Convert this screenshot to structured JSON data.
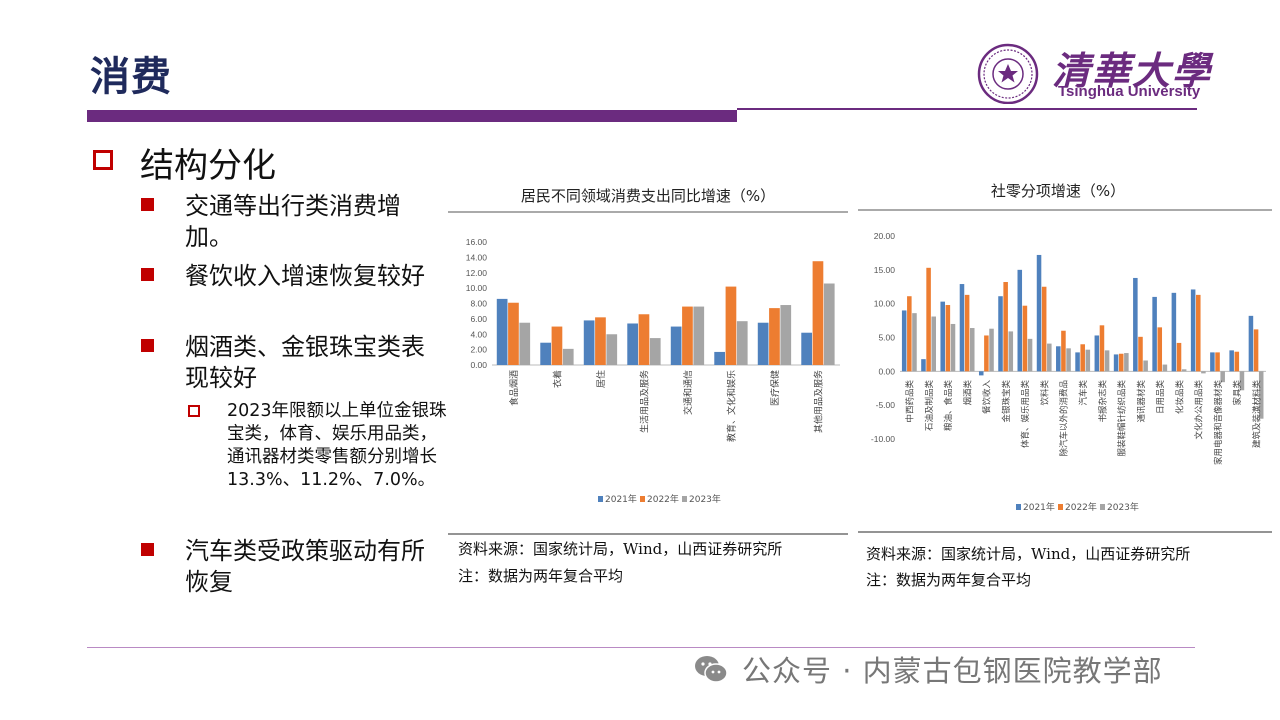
{
  "title": "消费",
  "logo": {
    "cn": "清華大學",
    "en": "Tsinghua University",
    "seal_text": "清华大学 TSINGHUA UNIVERSITY 1911"
  },
  "section": {
    "heading": "结构分化",
    "bullets": [
      {
        "text": "交通等出行类消费增加。"
      },
      {
        "text": "餐饮收入增速恢复较好"
      },
      {
        "text": "烟酒类、金银珠宝类表现较好"
      },
      {
        "text": "汽车类受政策驱动有所恢复"
      }
    ],
    "sub_bullet": "2023年限额以上单位金银珠宝类，体育、娱乐用品类，通讯器材类零售额分别增长 13.3%、11.2%、7.0%。"
  },
  "colors": {
    "y2021": "#4f81bd",
    "y2022": "#ed7d31",
    "y2023": "#a5a5a5",
    "accent": "#6b2b7f",
    "bullet": "#c00000"
  },
  "chart_data": [
    {
      "type": "bar",
      "title": "居民不同领域消费支出同比增速（%）",
      "categories": [
        "食品烟酒",
        "衣着",
        "居住",
        "生活用品及服务",
        "交通和通信",
        "教育、文化和娱乐",
        "医疗保健",
        "其他用品及服务"
      ],
      "series": [
        {
          "name": "2021年",
          "values": [
            8.6,
            2.9,
            5.8,
            5.4,
            5.0,
            1.7,
            5.5,
            4.2
          ]
        },
        {
          "name": "2022年",
          "values": [
            8.1,
            5.0,
            6.2,
            6.6,
            7.6,
            10.2,
            7.4,
            13.5
          ]
        },
        {
          "name": "2023年",
          "values": [
            5.5,
            2.1,
            4.0,
            3.5,
            7.6,
            5.7,
            7.8,
            10.6
          ]
        }
      ],
      "ylim": [
        0,
        16
      ],
      "yticks": [
        "0.00",
        "2.00",
        "4.00",
        "6.00",
        "8.00",
        "10.00",
        "12.00",
        "14.00",
        "16.00"
      ],
      "legend": "bottom",
      "source": "资料来源：国家统计局，Wind，山西证券研究所",
      "note": "注：数据为两年复合平均"
    },
    {
      "type": "bar",
      "title": "社零分项增速（%）",
      "categories": [
        "中西药品类",
        "石油及制品类",
        "粮油、食品类",
        "烟酒类",
        "餐饮收入",
        "金银珠宝类",
        "体育、娱乐用品类",
        "饮料类",
        "除汽车以外的消费品",
        "汽车类",
        "书报杂志类",
        "服装鞋帽针纺织品类",
        "通讯器材类",
        "日用品类",
        "化妆品类",
        "文化办公用品类",
        "家用电器和音像器材类",
        "家具类",
        "建筑及装潢材料类"
      ],
      "series": [
        {
          "name": "2021年",
          "values": [
            9.0,
            1.8,
            10.3,
            12.9,
            -0.6,
            11.1,
            15.0,
            17.2,
            3.7,
            2.8,
            5.3,
            2.5,
            13.8,
            11.0,
            11.6,
            12.1,
            2.8,
            3.1,
            8.2
          ]
        },
        {
          "name": "2022年",
          "values": [
            11.1,
            15.3,
            9.8,
            11.3,
            5.3,
            13.2,
            9.7,
            12.5,
            6.0,
            4.0,
            6.8,
            2.6,
            5.1,
            6.5,
            4.2,
            11.3,
            2.8,
            2.9,
            6.2
          ]
        },
        {
          "name": "2023年",
          "values": [
            8.6,
            8.1,
            7.0,
            6.4,
            6.3,
            5.9,
            4.8,
            4.1,
            3.4,
            3.2,
            3.1,
            2.7,
            1.6,
            1.0,
            0.3,
            -0.3,
            -1.6,
            -2.8,
            -7.0
          ]
        }
      ],
      "ylim": [
        -10,
        20
      ],
      "yticks": [
        "-10.00",
        "-5.00",
        "0.00",
        "5.00",
        "10.00",
        "15.00",
        "20.00"
      ],
      "legend": "bottom",
      "source": "资料来源：国家统计局，Wind，山西证券研究所",
      "note": "注：数据为两年复合平均"
    }
  ],
  "watermark": "公众号 · 内蒙古包钢医院教学部"
}
